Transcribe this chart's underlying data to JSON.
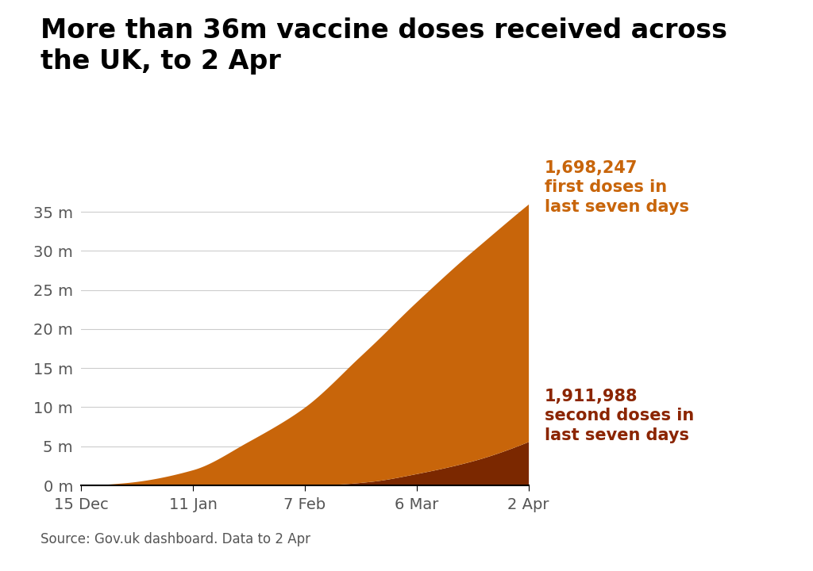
{
  "title": "More than 36m vaccine doses received across\nthe UK, to 2 Apr",
  "source_text": "Source: Gov.uk dashboard. Data to 2 Apr",
  "first_dose_annotation": "1,698,247\nfirst doses in\nlast seven days",
  "second_dose_annotation": "1,911,988\nsecond doses in\nlast seven days",
  "first_dose_color": "#c8650a",
  "second_dose_color": "#7b2800",
  "annotation_first_color": "#c8650a",
  "annotation_second_color": "#8b2500",
  "title_color": "#000000",
  "background_color": "#ffffff",
  "axis_label_color": "#555555",
  "grid_color": "#cccccc",
  "bottom_bar_color": "#e8e8e8",
  "ytick_labels": [
    "0 m",
    "5 m",
    "10 m",
    "15 m",
    "20 m",
    "25 m",
    "30 m",
    "35 m"
  ],
  "ytick_values": [
    0,
    5000000,
    10000000,
    15000000,
    20000000,
    25000000,
    30000000,
    35000000
  ],
  "xtick_labels": [
    "15 Dec",
    "11 Jan",
    "7 Feb",
    "6 Mar",
    "2 Apr"
  ],
  "xtick_days": [
    0,
    27,
    54,
    81,
    108
  ],
  "ylim": [
    0,
    38000000
  ],
  "total_days": 108,
  "title_fontsize": 24,
  "annotation_fontsize": 15,
  "tick_fontsize": 14,
  "source_fontsize": 12
}
